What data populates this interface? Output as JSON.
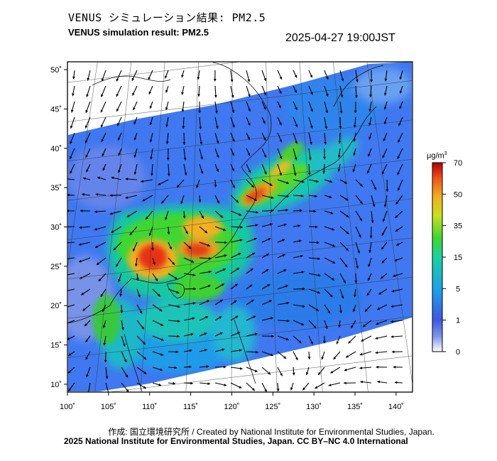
{
  "header": {
    "title_jp": "VENUS シミュレーション結果: PM2.5",
    "title_en": "VENUS simulation result: PM2.5",
    "timestamp": "2025-04-27 19:00JST"
  },
  "map": {
    "lon_range": [
      100,
      142
    ],
    "lat_range": [
      9,
      51
    ],
    "lon_ticks": [
      "100˚",
      "105˚",
      "110˚",
      "115˚",
      "120˚",
      "125˚",
      "130˚",
      "135˚",
      "140˚"
    ],
    "lat_ticks": [
      "10˚",
      "15˚",
      "20˚",
      "25˚",
      "30˚",
      "35˚",
      "40˚",
      "45˚",
      "50˚"
    ],
    "variable": "PM2.5 concentration",
    "hotspots": [
      {
        "lon": 110.2,
        "lat": 25.8,
        "value": 70
      },
      {
        "lon": 115.5,
        "lat": 26.5,
        "value": 65
      },
      {
        "lon": 122.2,
        "lat": 33.5,
        "value": 60
      },
      {
        "lon": 116.5,
        "lat": 29.5,
        "value": 45
      },
      {
        "lon": 118.5,
        "lat": 27.5,
        "value": 35
      }
    ]
  },
  "legend": {
    "unit_main": "μg/m",
    "unit_sup": "3",
    "ticks": [
      "0",
      "1",
      "5",
      "15",
      "35",
      "50",
      "70"
    ],
    "colors": [
      "#ffffff",
      "#3d58e0",
      "#1fa0e8",
      "#18d2a0",
      "#3fd630",
      "#f0d020",
      "#f07018",
      "#b00000"
    ]
  },
  "footer": {
    "credit": "作成: 国立環境研究所 / Created by National Institute for Environmental Studies, Japan.",
    "copyright": "2025 National Institute for Environmental Studies, Japan. CC BY–NC 4.0 International"
  }
}
